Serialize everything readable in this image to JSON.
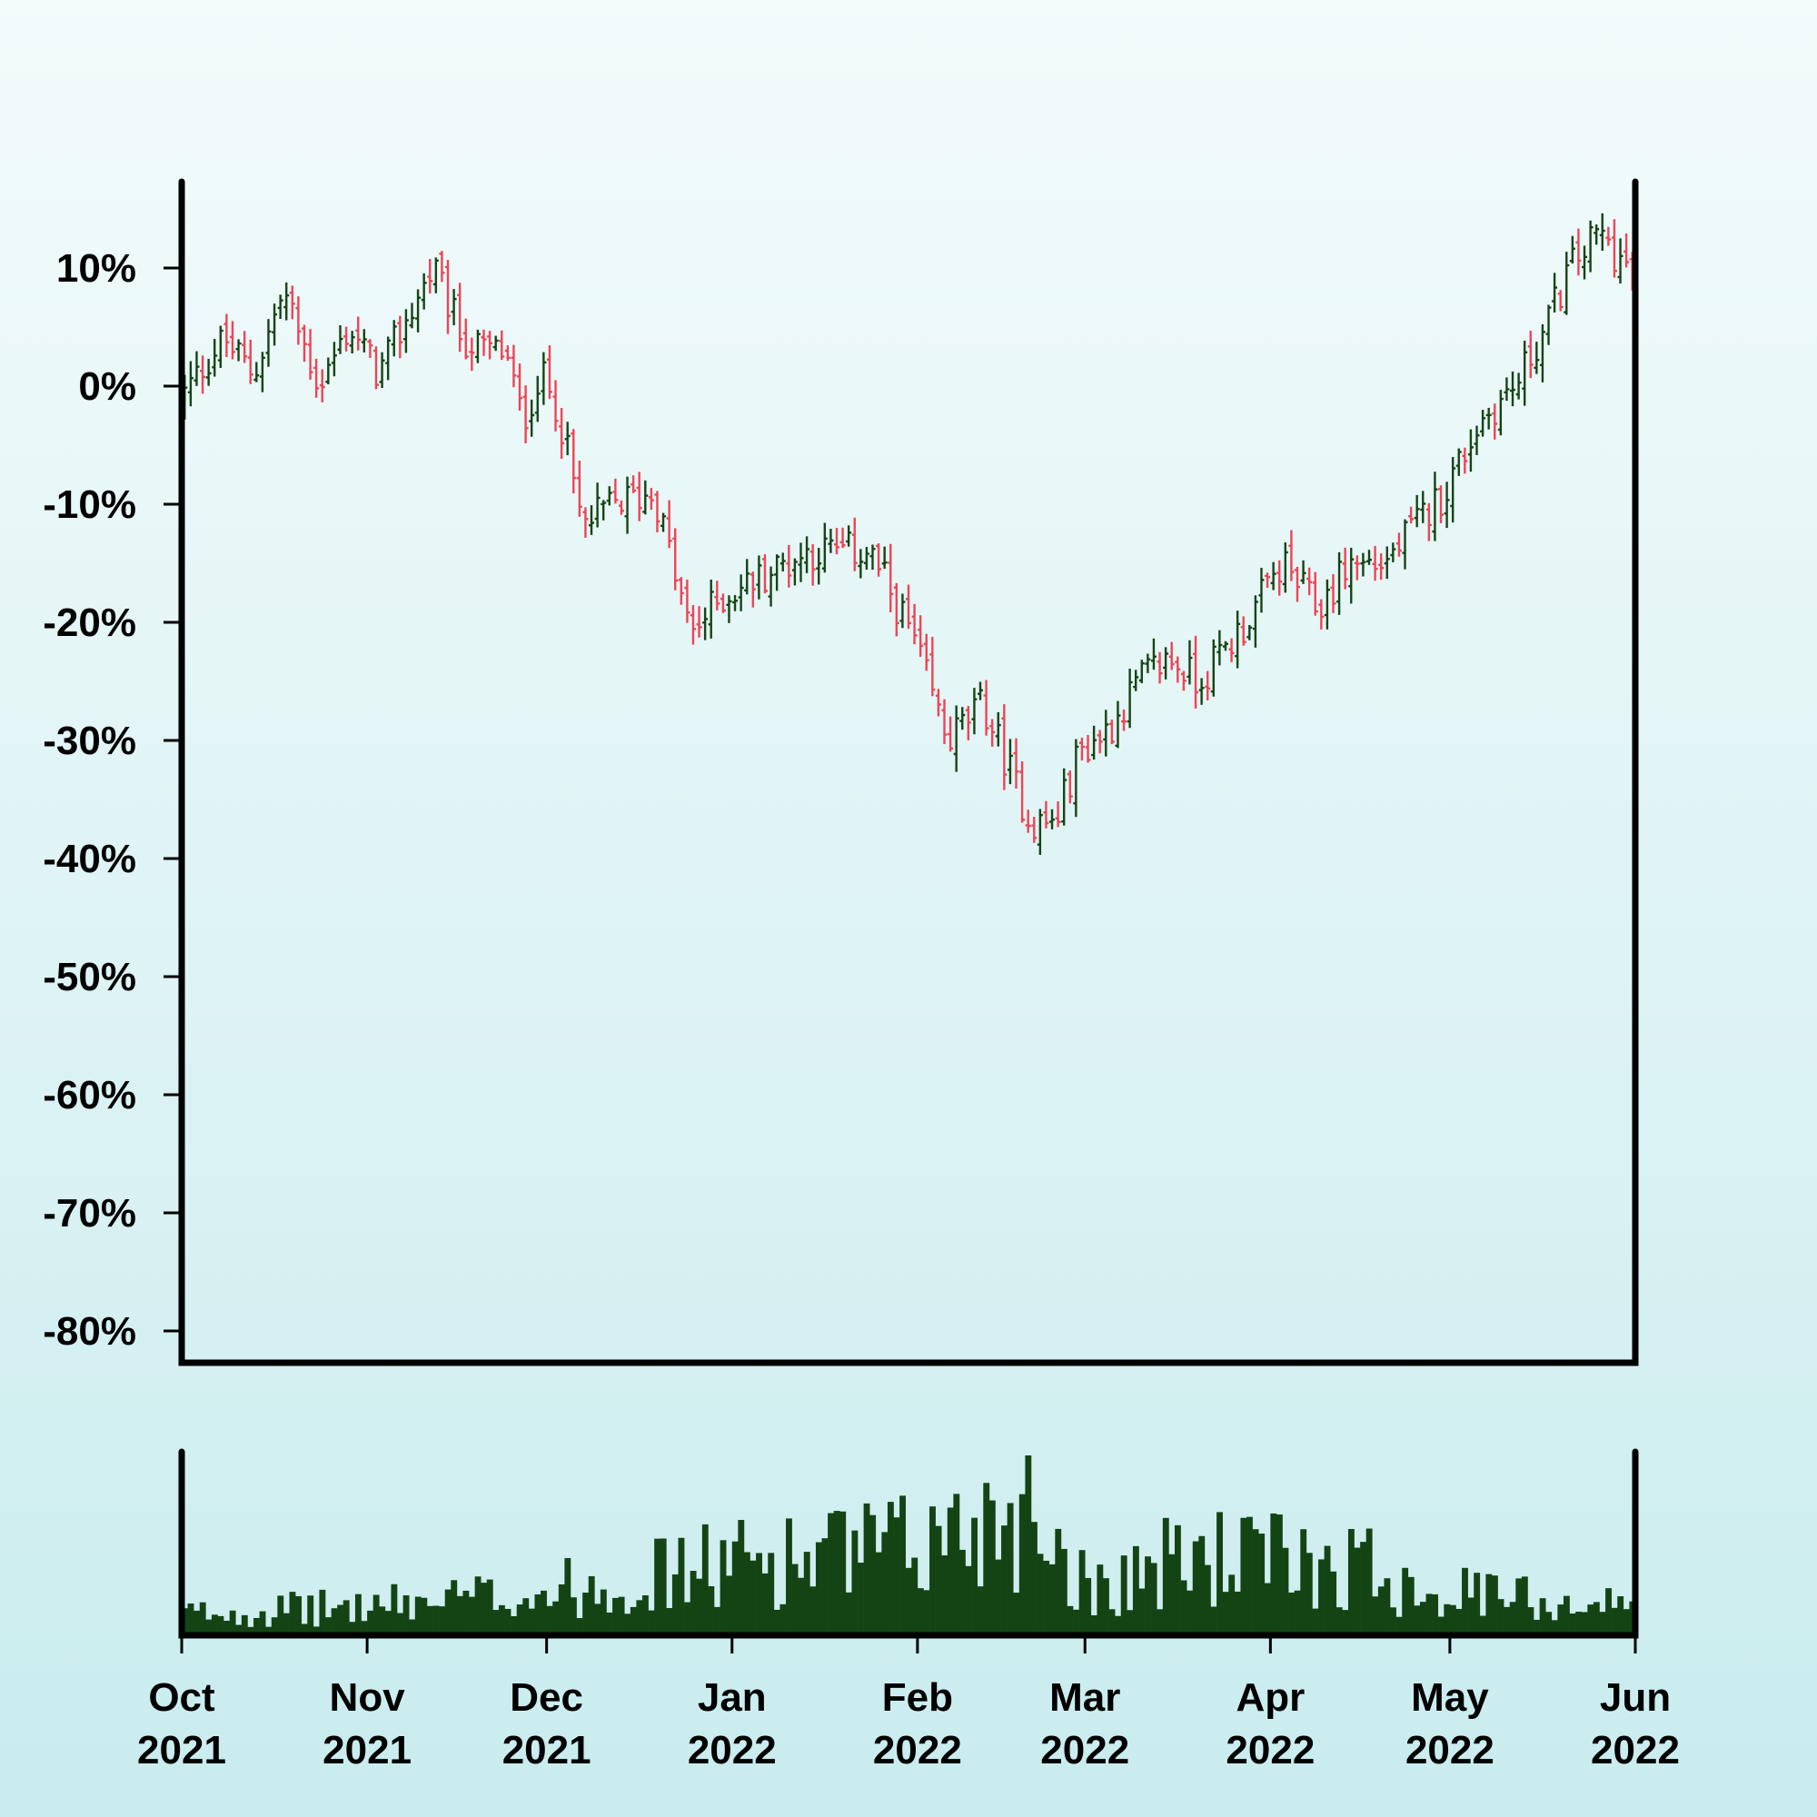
{
  "colors": {
    "up": "#144414",
    "down": "#ee4455",
    "volume": "#144414",
    "axis": "#000000",
    "background_top": "#f3fbfb",
    "background_bottom": "#c9ecee"
  },
  "chart_data": {
    "type": "ohlc",
    "title": "",
    "xlabel": "",
    "ylabel": "",
    "x_range": [
      "2021-10-01",
      "2022-06-01"
    ],
    "ylim": [
      -82,
      17
    ],
    "y_ticks": [
      10,
      0,
      -10,
      -20,
      -30,
      -40,
      -50,
      -60,
      -70,
      -80
    ],
    "y_tick_labels": [
      "10%",
      "0%",
      "-10%",
      "-20%",
      "-30%",
      "-40%",
      "-50%",
      "-60%",
      "-70%",
      "-80%"
    ],
    "x_ticks": [
      {
        "date": "2021-10-01",
        "month": "Oct",
        "year": "2021"
      },
      {
        "date": "2021-11-01",
        "month": "Nov",
        "year": "2021"
      },
      {
        "date": "2021-12-01",
        "month": "Dec",
        "year": "2021"
      },
      {
        "date": "2022-01-01",
        "month": "Jan",
        "year": "2022"
      },
      {
        "date": "2022-02-01",
        "month": "Feb",
        "year": "2022"
      },
      {
        "date": "2022-03-01",
        "month": "Mar",
        "year": "2022"
      },
      {
        "date": "2022-04-01",
        "month": "Apr",
        "year": "2022"
      },
      {
        "date": "2022-05-01",
        "month": "May",
        "year": "2022"
      },
      {
        "date": "2022-06-01",
        "month": "Jun",
        "year": "2022"
      }
    ],
    "close_trend_anchors": [
      {
        "date": "2021-10-01",
        "value": -1
      },
      {
        "date": "2021-10-05",
        "value": 2
      },
      {
        "date": "2021-10-08",
        "value": 4
      },
      {
        "date": "2021-10-13",
        "value": 1
      },
      {
        "date": "2021-10-18",
        "value": 8
      },
      {
        "date": "2021-10-24",
        "value": 0
      },
      {
        "date": "2021-10-29",
        "value": 5
      },
      {
        "date": "2021-11-03",
        "value": 1
      },
      {
        "date": "2021-11-07",
        "value": 5
      },
      {
        "date": "2021-11-12",
        "value": 10
      },
      {
        "date": "2021-11-17",
        "value": 4
      },
      {
        "date": "2021-11-20",
        "value": 3
      },
      {
        "date": "2021-11-24",
        "value": 3
      },
      {
        "date": "2021-11-27",
        "value": -3
      },
      {
        "date": "2021-11-30",
        "value": 1
      },
      {
        "date": "2021-12-03",
        "value": -2
      },
      {
        "date": "2021-12-07",
        "value": -12
      },
      {
        "date": "2021-12-12",
        "value": -10
      },
      {
        "date": "2021-12-19",
        "value": -9
      },
      {
        "date": "2021-12-25",
        "value": -21
      },
      {
        "date": "2021-12-30",
        "value": -18
      },
      {
        "date": "2022-01-06",
        "value": -16
      },
      {
        "date": "2022-01-14",
        "value": -14
      },
      {
        "date": "2022-01-24",
        "value": -14
      },
      {
        "date": "2022-01-31",
        "value": -21
      },
      {
        "date": "2022-02-06",
        "value": -30
      },
      {
        "date": "2022-02-12",
        "value": -27
      },
      {
        "date": "2022-02-16",
        "value": -32
      },
      {
        "date": "2022-02-20",
        "value": -37
      },
      {
        "date": "2022-02-24",
        "value": -37
      },
      {
        "date": "2022-02-28",
        "value": -31
      },
      {
        "date": "2022-03-05",
        "value": -29
      },
      {
        "date": "2022-03-10",
        "value": -25
      },
      {
        "date": "2022-03-15",
        "value": -23
      },
      {
        "date": "2022-03-20",
        "value": -25
      },
      {
        "date": "2022-03-28",
        "value": -20
      },
      {
        "date": "2022-04-03",
        "value": -15
      },
      {
        "date": "2022-04-09",
        "value": -19
      },
      {
        "date": "2022-04-14",
        "value": -15
      },
      {
        "date": "2022-04-20",
        "value": -15
      },
      {
        "date": "2022-04-25",
        "value": -12
      },
      {
        "date": "2022-04-30",
        "value": -9
      },
      {
        "date": "2022-05-06",
        "value": -3
      },
      {
        "date": "2022-05-12",
        "value": 0
      },
      {
        "date": "2022-05-17",
        "value": 5
      },
      {
        "date": "2022-05-21",
        "value": 10
      },
      {
        "date": "2022-05-26",
        "value": 13
      },
      {
        "date": "2022-06-01",
        "value": 9
      }
    ],
    "volume_trend_anchors": [
      {
        "date": "2021-10-01",
        "value": 0.15
      },
      {
        "date": "2021-11-01",
        "value": 0.2
      },
      {
        "date": "2021-12-01",
        "value": 0.3
      },
      {
        "date": "2022-01-01",
        "value": 0.5
      },
      {
        "date": "2022-02-01",
        "value": 0.6
      },
      {
        "date": "2022-02-20",
        "value": 0.95
      },
      {
        "date": "2022-03-01",
        "value": 0.35
      },
      {
        "date": "2022-03-20",
        "value": 0.55
      },
      {
        "date": "2022-04-15",
        "value": 0.5
      },
      {
        "date": "2022-05-01",
        "value": 0.3
      },
      {
        "date": "2022-06-01",
        "value": 0.2
      }
    ]
  }
}
